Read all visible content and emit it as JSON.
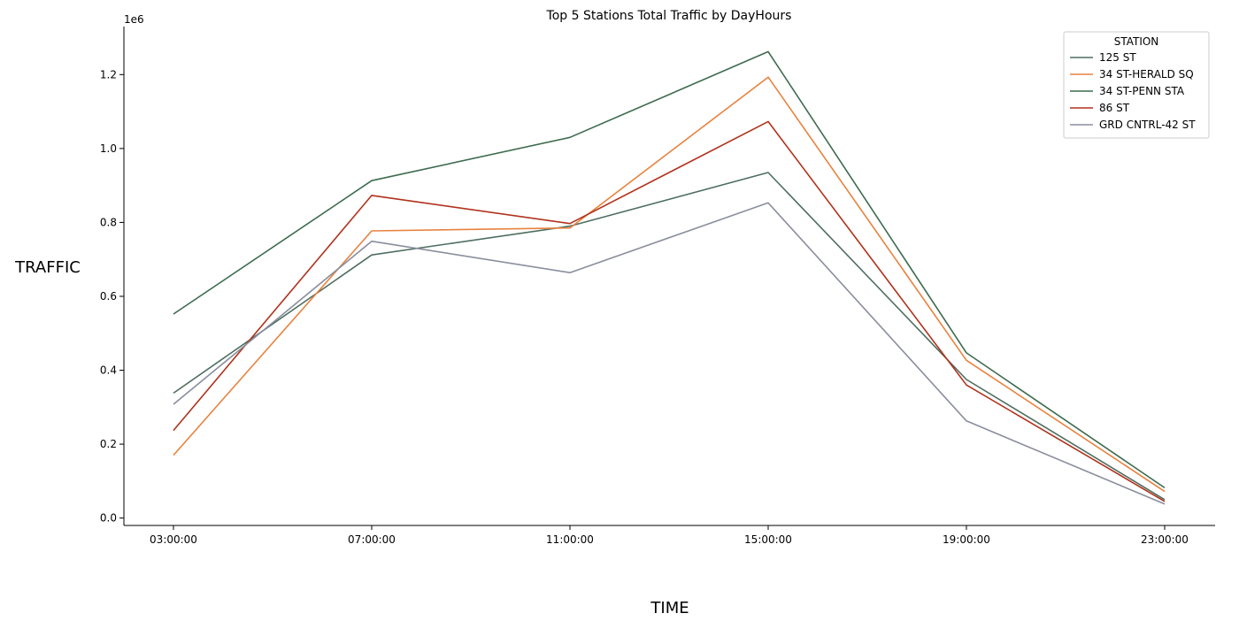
{
  "chart_data": {
    "type": "line",
    "title": "Top 5 Stations Total Traffic by DayHours",
    "xlabel": "TIME",
    "ylabel": "TRAFFIC",
    "y_offset_label": "1e6",
    "categories": [
      "03:00:00",
      "07:00:00",
      "11:00:00",
      "15:00:00",
      "19:00:00",
      "23:00:00"
    ],
    "ylim": [
      -0.02,
      1.33
    ],
    "yticks": [
      0.0,
      0.2,
      0.4,
      0.6,
      0.8,
      1.0,
      1.2
    ],
    "ytick_labels": [
      "0.0",
      "0.2",
      "0.4",
      "0.6",
      "0.8",
      "1.0",
      "1.2"
    ],
    "grid": false,
    "legend": {
      "title": "STATION",
      "placement": "top-right"
    },
    "series": [
      {
        "name": "125 ST",
        "color": "#4d6e5f",
        "values": [
          0.338,
          0.712,
          0.79,
          0.935,
          0.375,
          0.05
        ]
      },
      {
        "name": "34 ST-HERALD SQ",
        "color": "#e8823e",
        "values": [
          0.17,
          0.777,
          0.785,
          1.193,
          0.427,
          0.072
        ]
      },
      {
        "name": "34 ST-PENN STA",
        "color": "#3d6b4f",
        "values": [
          0.552,
          0.913,
          1.03,
          1.262,
          0.447,
          0.082
        ]
      },
      {
        "name": "86 ST",
        "color": "#b0321c",
        "values": [
          0.237,
          0.873,
          0.797,
          1.073,
          0.36,
          0.045
        ]
      },
      {
        "name": "GRD CNTRL-42 ST",
        "color": "#8a8e9e",
        "values": [
          0.308,
          0.749,
          0.664,
          0.853,
          0.263,
          0.038
        ]
      }
    ]
  }
}
